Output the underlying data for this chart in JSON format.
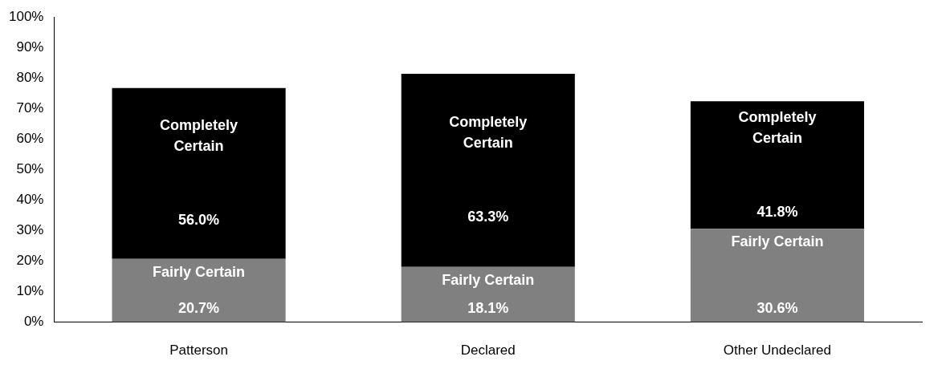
{
  "chart_data": {
    "type": "bar",
    "stacked": true,
    "categories": [
      "Patterson",
      "Declared",
      "Other Undeclared"
    ],
    "series": [
      {
        "name": "Fairly Certain",
        "color": "#808080",
        "values": [
          20.7,
          18.1,
          30.6
        ],
        "value_labels": [
          "20.7%",
          "18.1%",
          "30.6%"
        ]
      },
      {
        "name": "Completely Certain",
        "color": "#000000",
        "values": [
          56.0,
          63.3,
          41.8
        ],
        "value_labels": [
          "56.0%",
          "63.3%",
          "41.8%"
        ]
      }
    ],
    "ylim": [
      0,
      100
    ],
    "yticks": [
      {
        "value": 0,
        "label": "0%"
      },
      {
        "value": 10,
        "label": "10%"
      },
      {
        "value": 20,
        "label": "20%"
      },
      {
        "value": 30,
        "label": "30%"
      },
      {
        "value": 40,
        "label": "40%"
      },
      {
        "value": 50,
        "label": "50%"
      },
      {
        "value": 60,
        "label": "60%"
      },
      {
        "value": 70,
        "label": "70%"
      },
      {
        "value": 80,
        "label": "80%"
      },
      {
        "value": 90,
        "label": "90%"
      },
      {
        "value": 100,
        "label": "100%"
      }
    ],
    "grid": false,
    "legend": false
  }
}
